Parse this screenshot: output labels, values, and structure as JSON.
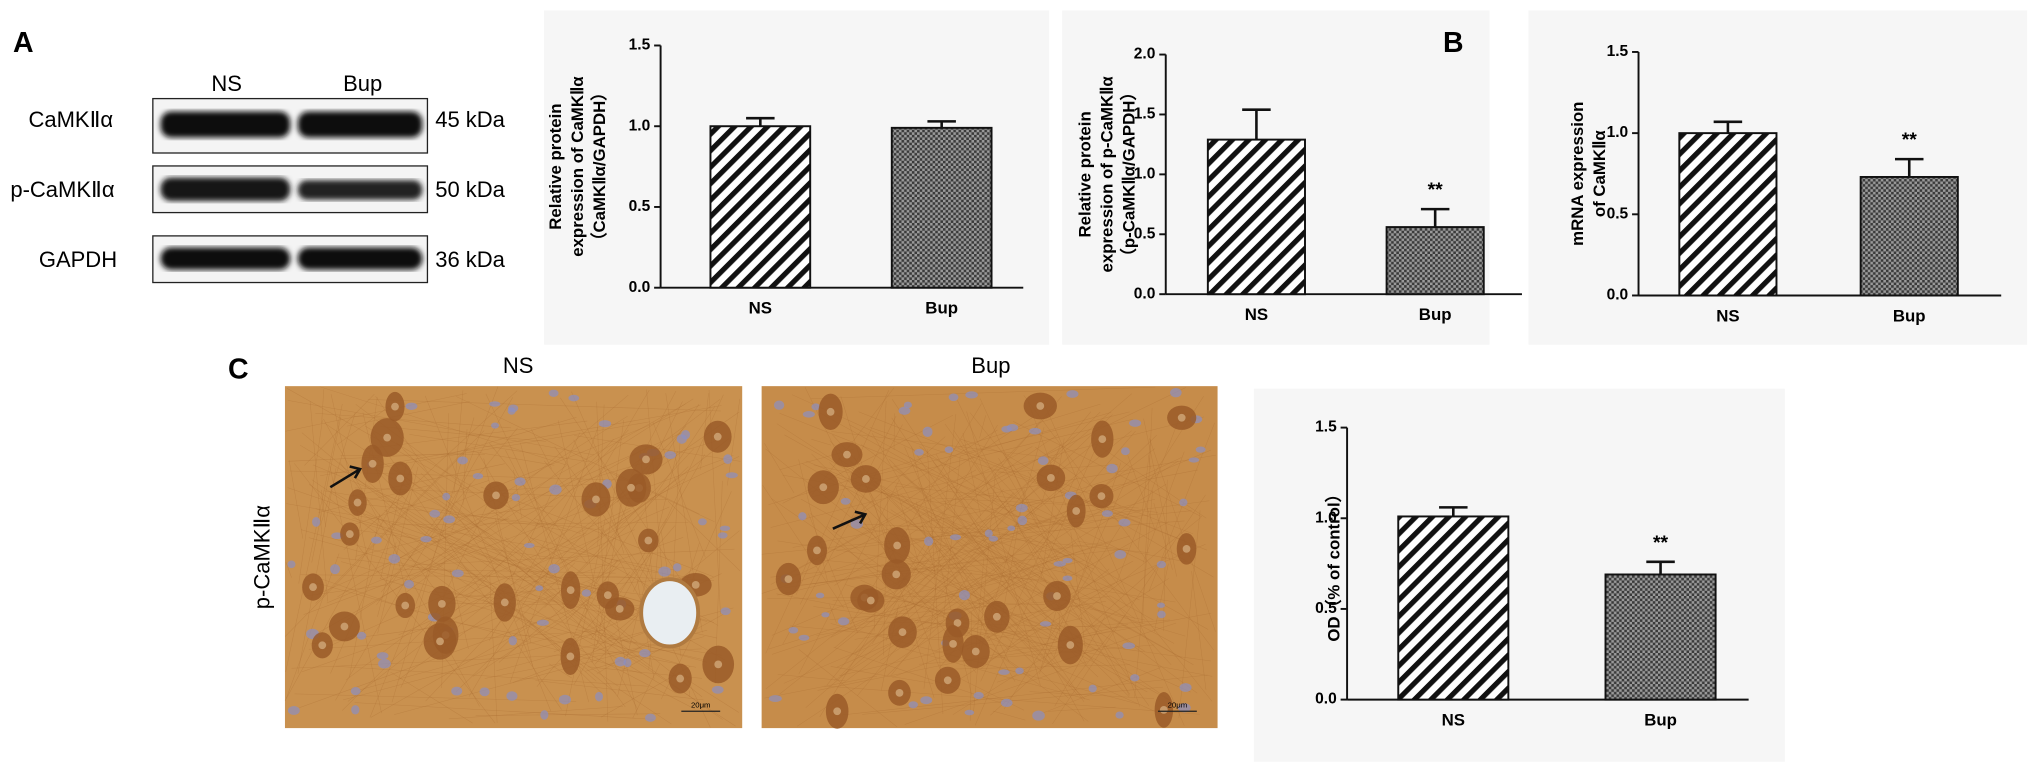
{
  "panel_labels": [
    "A",
    "B",
    "C"
  ],
  "western_blot": {
    "lanes": [
      "NS",
      "Bup"
    ],
    "rows": [
      {
        "label": "CaMKⅡα",
        "size": "45 kDa"
      },
      {
        "label": "p-CaMKⅡα",
        "size": "50 kDa"
      },
      {
        "label": "GAPDH",
        "size": "36 kDa"
      }
    ]
  },
  "ihc": {
    "groups": [
      "NS",
      "Bup"
    ],
    "stain": "p-CaMKⅡα",
    "scale_bar": "20μm"
  },
  "chart_data": [
    {
      "type": "bar",
      "ylabel": [
        "Relative protein",
        "expression of CaMKⅡα",
        "（CaMKⅡα/GAPDH）"
      ],
      "categories": [
        "NS",
        "Bup"
      ],
      "values": [
        1.0,
        0.99
      ],
      "errors": [
        0.05,
        0.04
      ],
      "marks": [
        null,
        null
      ],
      "patterns": [
        "hatch",
        "dots"
      ],
      "ylim": [
        0,
        1.5
      ],
      "yticks": [
        {
          "value": 0,
          "label": "0.0"
        },
        0.5,
        {
          "value": 1,
          "label": "1.0"
        },
        1.5
      ]
    },
    {
      "type": "bar",
      "ylabel": [
        "Relative protein",
        "expression of p-CaMKⅡα",
        "（p-CaMKⅡα/GAPDH）"
      ],
      "categories": [
        "NS",
        "Bup"
      ],
      "values": [
        1.29,
        0.56
      ],
      "errors": [
        0.25,
        0.15
      ],
      "marks": [
        null,
        "**"
      ],
      "patterns": [
        "hatch",
        "dots"
      ],
      "ylim": [
        0,
        2
      ],
      "yticks": [
        {
          "value": 0,
          "label": "0.0"
        },
        0.5,
        {
          "value": 1,
          "label": "1.0"
        },
        1.5,
        {
          "value": 2,
          "label": "2.0"
        }
      ]
    },
    {
      "type": "bar",
      "ylabel": [
        "mRNA expression",
        "of CaMKⅡα"
      ],
      "categories": [
        "NS",
        "Bup"
      ],
      "values": [
        1.0,
        0.73
      ],
      "errors": [
        0.07,
        0.11
      ],
      "marks": [
        null,
        "**"
      ],
      "patterns": [
        "hatch",
        "dots"
      ],
      "ylim": [
        0,
        1.5
      ],
      "yticks": [
        {
          "value": 0,
          "label": "0.0"
        },
        0.5,
        {
          "value": 1,
          "label": "1.0"
        },
        1.5
      ]
    },
    {
      "type": "bar",
      "ylabel": [
        "OD（% of control）"
      ],
      "categories": [
        "NS",
        "Bup"
      ],
      "values": [
        1.01,
        0.69
      ],
      "errors": [
        0.05,
        0.07
      ],
      "marks": [
        null,
        "**"
      ],
      "patterns": [
        "hatch",
        "dots"
      ],
      "ylim": [
        0,
        1.5
      ],
      "yticks": [
        {
          "value": 0,
          "label": "0.0"
        },
        0.5,
        {
          "value": 1,
          "label": "1.0"
        },
        1.5
      ]
    }
  ]
}
